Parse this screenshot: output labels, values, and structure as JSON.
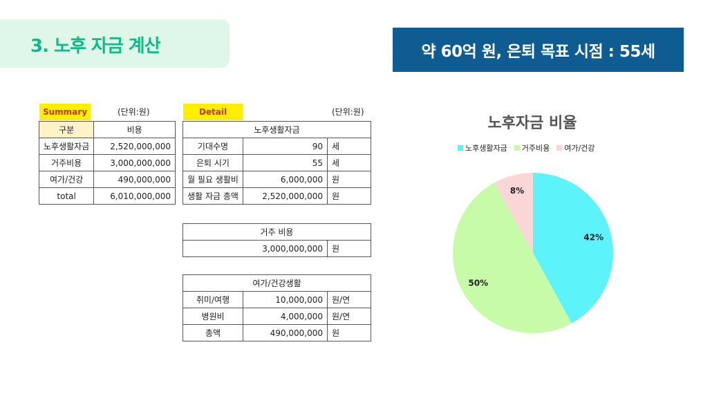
{
  "header": {
    "section_title": "3. 노후 자금 계산",
    "banner": "약 60억 원, 은퇴 목표 시점 : 55세"
  },
  "summary": {
    "tag": "Summary",
    "unit": "(단위:원)",
    "headers": [
      "구분",
      "비용"
    ],
    "rows": [
      [
        "노후생활자금",
        "2,520,000,000"
      ],
      [
        "거주비용",
        "3,000,000,000"
      ],
      [
        "여가/건강",
        "490,000,000"
      ],
      [
        "total",
        "6,010,000,000"
      ]
    ]
  },
  "detail": {
    "tag": "Detail",
    "unit": "(단위:원)",
    "living": {
      "title": "노후생활자금",
      "rows": [
        [
          "기대수명",
          "90",
          "세"
        ],
        [
          "은퇴 시기",
          "55",
          "세"
        ],
        [
          "월 필요 생활비",
          "6,000,000",
          "원"
        ],
        [
          "생활 자금 총액",
          "2,520,000,000",
          "원"
        ]
      ]
    },
    "housing": {
      "title": "거주 비용",
      "value": "3,000,000,000",
      "unit": "원"
    },
    "leisure": {
      "title": "여가/건강생활",
      "rows": [
        [
          "취미/여행",
          "10,000,000",
          "원/연"
        ],
        [
          "병원비",
          "4,000,000",
          "원/연"
        ],
        [
          "총액",
          "490,000,000",
          "원"
        ]
      ]
    }
  },
  "chart_data": {
    "type": "pie",
    "title": "노후자금 비율",
    "legend_position": "top",
    "categories": [
      "노후생활자금",
      "거주비용",
      "여가/건강"
    ],
    "values": [
      42,
      50,
      8
    ],
    "labels": [
      "42%",
      "50%",
      "8%"
    ],
    "colors": [
      "#5cf3fb",
      "#c8fba8",
      "#fbd6d6"
    ]
  }
}
